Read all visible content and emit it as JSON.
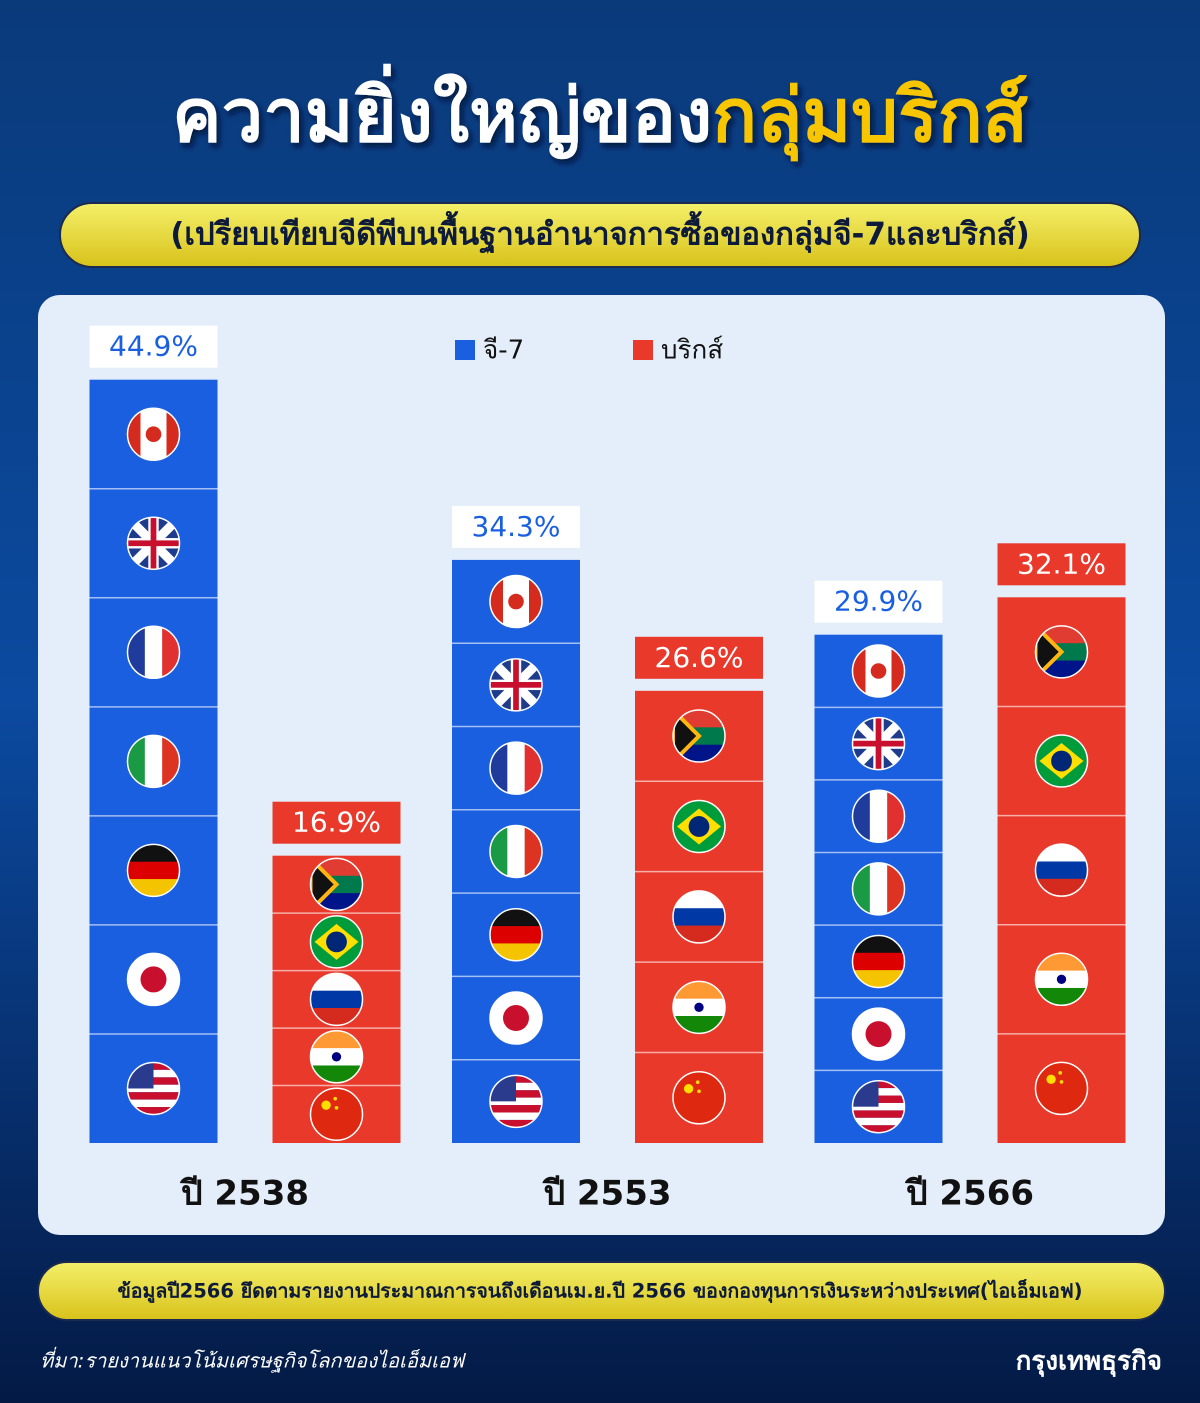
{
  "chart_data": {
    "type": "bar",
    "title": "ความยิ่งใหญ่ของ",
    "title_highlight": "กลุ่มบริกส์",
    "subtitle": "(เปรียบเทียบจีดีพีบนพื้นฐานอำนาจการซื้อของกลุ่มจี-7และบริกส์)",
    "categories": [
      "ปี 2538",
      "ปี 2553",
      "ปี 2566"
    ],
    "series": [
      {
        "name": "จี-7",
        "color": "#1a5fe0",
        "values": [
          44.9,
          34.3,
          29.9
        ],
        "value_labels": [
          "44.9%",
          "34.3%",
          "29.9%"
        ]
      },
      {
        "name": "บริกส์",
        "color": "#e8392b",
        "values": [
          16.9,
          26.6,
          32.1
        ],
        "value_labels": [
          "16.9%",
          "26.6%",
          "32.1%"
        ]
      }
    ],
    "ylim": [
      0,
      50
    ],
    "legend": "top",
    "note": "ข้อมูลปี2566 ยึดตามรายงานประมาณการจนถึงเดือนเม.ย.ปี 2566 ของกองทุนการเงินระหว่างประเทศ(ไอเอ็มเอฟ)",
    "source": "ที่มา:รายงานแนวโน้มเศรษฐกิจโลกของไอเอ็มเอฟ",
    "brand": "กรุงเทพธุรกิจ"
  }
}
